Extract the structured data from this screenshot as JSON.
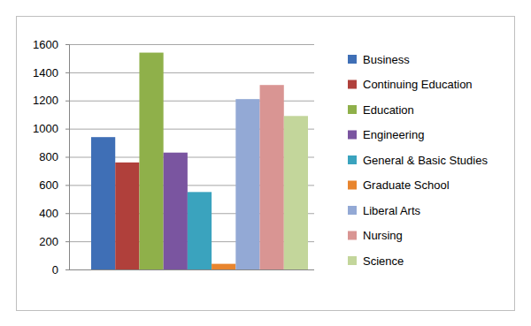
{
  "chart_data": {
    "type": "bar",
    "categories": [
      "Business",
      "Continuing Education",
      "Education",
      "Engineering",
      "General & Basic Studies",
      "Graduate School",
      "Liberal Arts",
      "Nursing",
      "Science"
    ],
    "values": [
      940,
      760,
      1540,
      830,
      550,
      40,
      1210,
      1310,
      1090
    ],
    "colors": [
      "#3f6fb6",
      "#b0403b",
      "#8fb04a",
      "#7a55a0",
      "#3aa3be",
      "#e8852e",
      "#93a9d5",
      "#d99593",
      "#c3d69b"
    ],
    "ylim": [
      0,
      1600
    ],
    "yticks": [
      0,
      200,
      400,
      600,
      800,
      1000,
      1200,
      1400,
      1600
    ],
    "grid": true,
    "legend": "right",
    "tick_labels": "y"
  }
}
